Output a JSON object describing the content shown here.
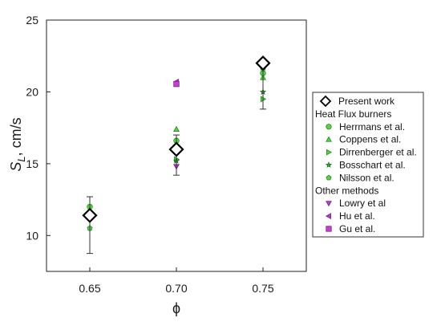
{
  "chart_data": {
    "type": "scatter",
    "xlabel": "ϕ",
    "ylabel_main": "S",
    "ylabel_sub": "L",
    "ylabel_unit": ", cm/s",
    "xlim": [
      0.625,
      0.775
    ],
    "ylim": [
      7.5,
      25
    ],
    "xticks": [
      0.65,
      0.7,
      0.75
    ],
    "xtick_labels": [
      "0.65",
      "0.70",
      "0.75"
    ],
    "yticks": [
      10,
      15,
      20,
      25
    ],
    "ytick_labels": [
      "10",
      "15",
      "20",
      "25"
    ],
    "legend_position": "right",
    "series": [
      {
        "name": "Present work",
        "marker": "diamond",
        "color": "#000000",
        "fill": "#ffffff",
        "points": [
          {
            "x": 0.65,
            "y": 11.4,
            "err_low": 8.75,
            "err_high": 12.7
          },
          {
            "x": 0.7,
            "y": 16.0,
            "err_low": 14.2,
            "err_high": 17.0
          },
          {
            "x": 0.75,
            "y": 22.0,
            "err_low": 18.8,
            "err_high": 22.3
          }
        ]
      },
      {
        "name": "Herrmans et al.",
        "marker": "circle",
        "color": "#1e8e1e",
        "fill": "#5ecf4a",
        "points": [
          {
            "x": 0.65,
            "y": 12.0
          },
          {
            "x": 0.7,
            "y": 16.6
          },
          {
            "x": 0.75,
            "y": 21.3
          }
        ]
      },
      {
        "name": "Coppens et al.",
        "marker": "triangle-up",
        "color": "#1e8e1e",
        "fill": "#5ecf4a",
        "points": [
          {
            "x": 0.7,
            "y": 17.4
          },
          {
            "x": 0.75,
            "y": 21.0
          }
        ]
      },
      {
        "name": "Dirrenberger et al.",
        "marker": "triangle-right",
        "color": "#1e8e1e",
        "fill": "#5ecf4a",
        "points": [
          {
            "x": 0.7,
            "y": 15.3
          },
          {
            "x": 0.75,
            "y": 19.5
          }
        ]
      },
      {
        "name": "Bosschart et al.",
        "marker": "star",
        "color": "#1e6e1e",
        "fill": "#3aa53a",
        "points": [
          {
            "x": 0.7,
            "y": 15.2
          },
          {
            "x": 0.75,
            "y": 20.0
          }
        ]
      },
      {
        "name": "Nilsson et al.",
        "marker": "pentagon",
        "color": "#1e8e1e",
        "fill": "#5ecf4a",
        "points": [
          {
            "x": 0.65,
            "y": 10.5
          },
          {
            "x": 0.7,
            "y": 15.8
          },
          {
            "x": 0.75,
            "y": 21.6
          }
        ]
      },
      {
        "name": "Lowry et al",
        "marker": "triangle-down",
        "color": "#7a1f8a",
        "fill": "#b03fc8",
        "points": [
          {
            "x": 0.7,
            "y": 14.8
          }
        ]
      },
      {
        "name": "Hu et al.",
        "marker": "triangle-left",
        "color": "#7a1f8a",
        "fill": "#b03fc8",
        "points": [
          {
            "x": 0.7,
            "y": 20.7
          }
        ]
      },
      {
        "name": "Gu et al.",
        "marker": "square",
        "color": "#7a1f8a",
        "fill": "#c83fd0",
        "points": [
          {
            "x": 0.7,
            "y": 20.55
          }
        ]
      }
    ],
    "legend": [
      {
        "kind": "series",
        "series": 0,
        "label": "Present work"
      },
      {
        "kind": "header",
        "label": "Heat Flux burners"
      },
      {
        "kind": "series",
        "series": 1,
        "label": "Herrmans et al."
      },
      {
        "kind": "series",
        "series": 2,
        "label": "Coppens et al."
      },
      {
        "kind": "series",
        "series": 3,
        "label": "Dirrenberger et al."
      },
      {
        "kind": "series",
        "series": 4,
        "label": "Bosschart et al."
      },
      {
        "kind": "series",
        "series": 5,
        "label": "Nilsson et al."
      },
      {
        "kind": "header",
        "label": "Other methods"
      },
      {
        "kind": "series",
        "series": 6,
        "label": "Lowry et al"
      },
      {
        "kind": "series",
        "series": 7,
        "label": "Hu et al."
      },
      {
        "kind": "series",
        "series": 8,
        "label": "Gu et al."
      }
    ]
  }
}
